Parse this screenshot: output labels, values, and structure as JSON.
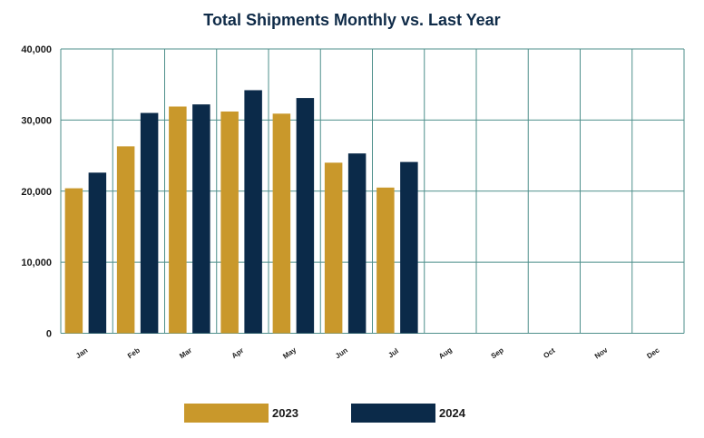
{
  "chart_data": {
    "type": "bar",
    "title": "Total Shipments Monthly vs. Last Year",
    "xlabel": "",
    "ylabel": "",
    "categories": [
      "Jan",
      "Feb",
      "Mar",
      "Apr",
      "May",
      "Jun",
      "Jul",
      "Aug",
      "Sep",
      "Oct",
      "Nov",
      "Dec"
    ],
    "series": [
      {
        "name": "2023",
        "color": "#C9982B",
        "values": [
          20400,
          26300,
          31900,
          31200,
          30900,
          24000,
          20500,
          null,
          null,
          null,
          null,
          null
        ]
      },
      {
        "name": "2024",
        "color": "#0B2A49",
        "values": [
          22600,
          31000,
          32200,
          34200,
          33100,
          25300,
          24100,
          null,
          null,
          null,
          null,
          null
        ]
      }
    ],
    "ylim": [
      0,
      40000
    ],
    "yticks": [
      "0",
      "10,000",
      "20,000",
      "30,000",
      "40,000"
    ],
    "grid": true,
    "grid_color": "#4E8F8B",
    "legend_position": "bottom"
  }
}
